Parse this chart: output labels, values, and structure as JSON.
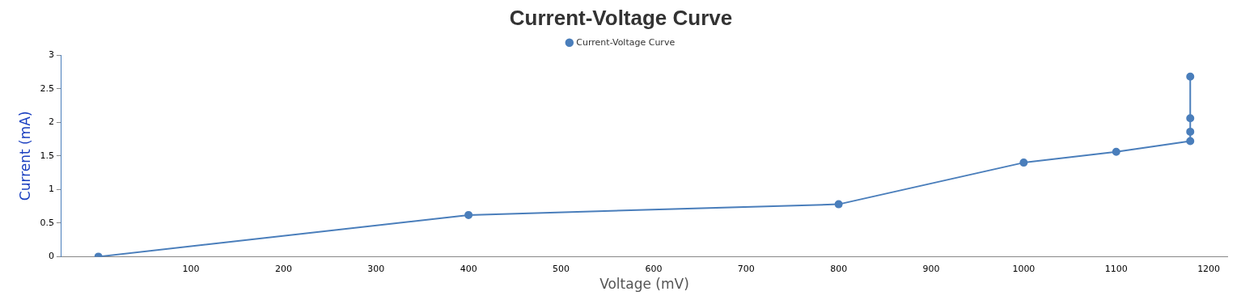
{
  "chart_data": {
    "type": "line",
    "title": "Current-Voltage Curve",
    "xlabel": "Voltage (mV)",
    "ylabel": "Current (mA)",
    "x": [
      0,
      400,
      800,
      1000,
      1100,
      1180,
      1180,
      1180,
      1180
    ],
    "series": [
      {
        "name": "Current-Voltage Curve",
        "color": "#4a7ebb",
        "values": [
          0,
          0.62,
          0.78,
          1.4,
          1.56,
          1.72,
          1.86,
          2.06,
          2.68
        ]
      }
    ],
    "xlim": [
      -40,
      1220
    ],
    "xticks": [
      100,
      200,
      300,
      400,
      500,
      600,
      700,
      800,
      900,
      1000,
      1100,
      1200
    ],
    "ylim": [
      0,
      3
    ],
    "yticks": [
      0,
      0.5,
      1,
      1.5,
      2,
      2.5,
      3
    ],
    "grid": false,
    "legend": "top",
    "marker": "circle",
    "line_style": "solid"
  }
}
